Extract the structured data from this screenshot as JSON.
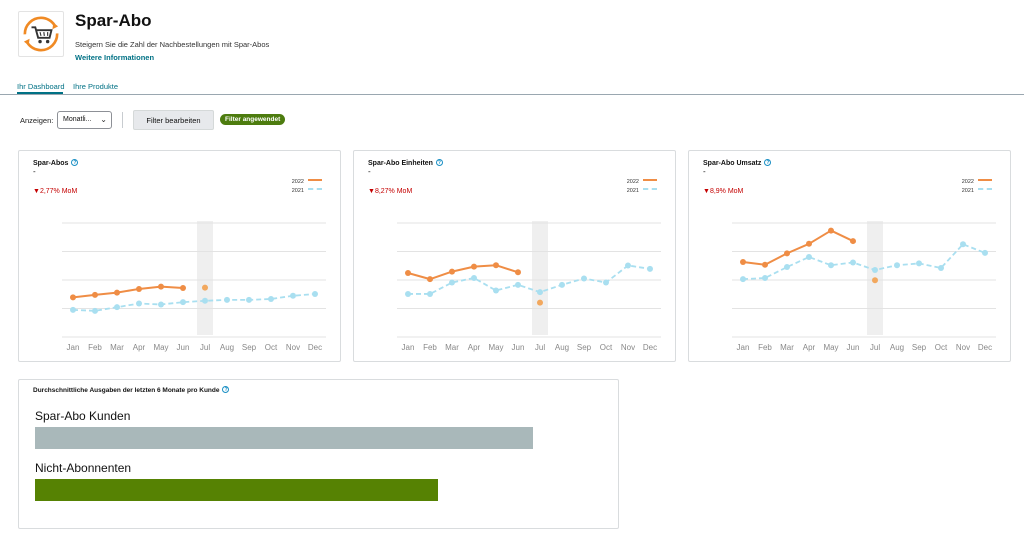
{
  "header": {
    "title": "Spar-Abo",
    "subtitle": "Steigern Sie die Zahl der Nachbestellungen mit Spar-Abos",
    "more_link": "Weitere Informationen",
    "icon": "subscribe-cart-icon",
    "icon_color": "#f08a24"
  },
  "tabs": [
    {
      "label": "Ihr Dashboard",
      "active": true
    },
    {
      "label": "Ihre Produkte",
      "active": false
    }
  ],
  "filters": {
    "show_label": "Anzeigen:",
    "period_value": "Monatli...",
    "edit_button": "Filter bearbeiten",
    "applied_badge": "Filter angewendet"
  },
  "colors": {
    "series_2022": "#ef8d45",
    "series_2021": "#a9dff0",
    "mom_down": "#c40000",
    "subscribers_bar": "#a9b8ba",
    "non_subscribers_bar": "#568203",
    "link": "#007185"
  },
  "cards": [
    {
      "title": "Spar-Abos",
      "value": "-",
      "mom": "2,77% MoM",
      "mom_icon": "down-triangle-icon",
      "legend": [
        "2022",
        "2021"
      ]
    },
    {
      "title": "Spar-Abo Einheiten",
      "value": "-",
      "mom": "8,27% MoM",
      "mom_icon": "down-triangle-icon",
      "legend": [
        "2022",
        "2021"
      ]
    },
    {
      "title": "Spar-Abo Umsatz",
      "value": "-",
      "mom": "8,9% MoM",
      "mom_icon": "down-triangle-icon",
      "legend": [
        "2022",
        "2021"
      ]
    }
  ],
  "chart_data": [
    {
      "type": "line",
      "title": "Spar-Abos",
      "categories": [
        "Jan",
        "Feb",
        "Mar",
        "Apr",
        "May",
        "Jun",
        "Jul",
        "Aug",
        "Sep",
        "Oct",
        "Nov",
        "Dec"
      ],
      "ylim": [
        0,
        5
      ],
      "grid": true,
      "legend_position": "top-right",
      "highlight_category": "Jul",
      "series": [
        {
          "name": "2022",
          "values": [
            1.65,
            1.76,
            1.86,
            2.02,
            2.12,
            2.06,
            null,
            null,
            null,
            null,
            null,
            null
          ],
          "partial": {
            "Jul": 2.08
          }
        },
        {
          "name": "2021",
          "values": [
            1.1,
            1.06,
            1.22,
            1.38,
            1.34,
            1.44,
            1.5,
            1.54,
            1.54,
            1.58,
            1.72,
            1.8
          ]
        }
      ]
    },
    {
      "type": "line",
      "title": "Spar-Abo Einheiten",
      "categories": [
        "Jan",
        "Feb",
        "Mar",
        "Apr",
        "May",
        "Jun",
        "Jul",
        "Aug",
        "Sep",
        "Oct",
        "Nov",
        "Dec"
      ],
      "ylim": [
        0,
        5
      ],
      "grid": true,
      "legend_position": "top-right",
      "highlight_category": "Jul",
      "series": [
        {
          "name": "2022",
          "values": [
            2.72,
            2.45,
            2.78,
            3.0,
            3.06,
            2.75,
            null,
            null,
            null,
            null,
            null,
            null
          ],
          "partial": {
            "Jul": 1.42
          }
        },
        {
          "name": "2021",
          "values": [
            1.8,
            1.8,
            2.3,
            2.5,
            1.95,
            2.2,
            1.88,
            2.2,
            2.48,
            2.3,
            3.05,
            2.9
          ]
        }
      ]
    },
    {
      "type": "line",
      "title": "Spar-Abo Umsatz",
      "categories": [
        "Jan",
        "Feb",
        "Mar",
        "Apr",
        "May",
        "Jun",
        "Jul",
        "Aug",
        "Sep",
        "Oct",
        "Nov",
        "Dec"
      ],
      "ylim": [
        0,
        5
      ],
      "grid": true,
      "legend_position": "top-right",
      "highlight_category": "Jul",
      "series": [
        {
          "name": "2022",
          "values": [
            3.2,
            3.08,
            3.58,
            4.0,
            4.58,
            4.12,
            null,
            null,
            null,
            null,
            null,
            null
          ],
          "partial": {
            "Jul": 2.4
          }
        },
        {
          "name": "2021",
          "values": [
            2.45,
            2.5,
            2.98,
            3.42,
            3.06,
            3.18,
            2.85,
            3.06,
            3.14,
            2.94,
            3.98,
            3.6
          ]
        }
      ]
    }
  ],
  "spend": {
    "title": "Durchschnittliche Ausgaben der letzten 6 Monate pro Kunde",
    "rows": [
      {
        "label": "Spar-Abo Kunden",
        "value": 0.864
      },
      {
        "label": "Nicht-Abonnenten",
        "value": 0.7
      }
    ]
  }
}
